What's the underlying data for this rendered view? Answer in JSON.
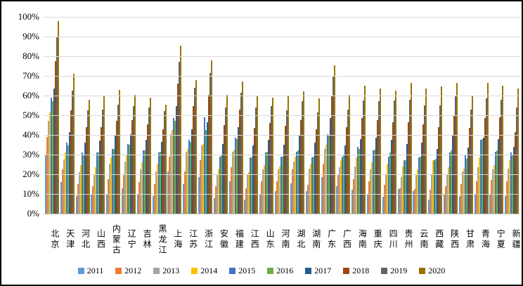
{
  "chart_data": {
    "type": "bar",
    "title": "",
    "xlabel": "",
    "ylabel": "",
    "ylim": [
      0,
      100
    ],
    "grid": true,
    "legend_position": "bottom",
    "y_ticks": [
      "0%",
      "10%",
      "20%",
      "30%",
      "40%",
      "50%",
      "60%",
      "70%",
      "80%",
      "90%",
      "100%"
    ],
    "categories": [
      "北京",
      "天津",
      "河北",
      "山西",
      "内蒙古",
      "辽宁",
      "吉林",
      "黑龙江",
      "上海",
      "江苏",
      "浙江",
      "安徽",
      "福建",
      "江西",
      "山东",
      "河南",
      "湖北",
      "湖南",
      "广东",
      "广西",
      "海南",
      "重庆",
      "四川",
      "贵州",
      "云南",
      "西藏",
      "陕西",
      "甘肃",
      "青海",
      "宁夏",
      "新疆"
    ],
    "series": [
      {
        "name": "2011",
        "color": "#5B9BD5",
        "values": [
          30,
          16,
          9,
          9.5,
          10,
          13,
          9.5,
          9,
          21.5,
          15,
          18.5,
          8,
          16.5,
          7,
          10,
          11.5,
          15.5,
          11.5,
          18.5,
          14,
          12,
          10,
          8.5,
          12.5,
          11.5,
          7,
          9.5,
          9,
          9.5,
          10,
          9
        ]
      },
      {
        "name": "2012",
        "color": "#ED7D31",
        "values": [
          39,
          22.5,
          15,
          14,
          17.5,
          19.5,
          16,
          15,
          29,
          21.5,
          27,
          14,
          23.5,
          13,
          16.5,
          16.5,
          22.5,
          14.5,
          25.5,
          20,
          17.5,
          16.5,
          14.5,
          13,
          12.5,
          12,
          14,
          15,
          16.5,
          17,
          16.5
        ]
      },
      {
        "name": "2013",
        "color": "#A5A5A5",
        "values": [
          47,
          27.5,
          21,
          20,
          25.5,
          26.5,
          22.5,
          21.5,
          40.5,
          31.5,
          34.5,
          20,
          31.5,
          19.5,
          22.5,
          22.5,
          26.5,
          23,
          33,
          23.5,
          24,
          22.5,
          20,
          18.5,
          20,
          19.5,
          20,
          21.5,
          23.5,
          22.5,
          23
        ]
      },
      {
        "name": "2014",
        "color": "#FFC000",
        "values": [
          51.5,
          31,
          24.5,
          23.5,
          28.5,
          30,
          26,
          25.5,
          42.5,
          33,
          35.5,
          22.5,
          32.5,
          21,
          24.5,
          24,
          29,
          25.5,
          35,
          27,
          28.5,
          26,
          25.5,
          24,
          22.5,
          27,
          23.5,
          23,
          28.5,
          24.5,
          27
        ]
      },
      {
        "name": "2015",
        "color": "#4472C4",
        "values": [
          59,
          36,
          31,
          31,
          33,
          35.5,
          32,
          31,
          48.5,
          37.5,
          49,
          29,
          38.5,
          28.5,
          31,
          29,
          31.5,
          28.5,
          40.5,
          29,
          34,
          32,
          29,
          27,
          28.5,
          27,
          31,
          30,
          37.5,
          31.5,
          31
        ]
      },
      {
        "name": "2016",
        "color": "#70AD47",
        "values": [
          57,
          34.5,
          30,
          31,
          33,
          35,
          32,
          31.5,
          47,
          36.5,
          42.5,
          30,
          38,
          28.5,
          31.5,
          29,
          32,
          29,
          40,
          30,
          33,
          32.5,
          31,
          27,
          29,
          28,
          32,
          28,
          38,
          32,
          30
        ]
      },
      {
        "name": "2017",
        "color": "#255E91",
        "values": [
          63.5,
          41.5,
          36,
          37,
          39.5,
          40.5,
          37.5,
          36.5,
          54.5,
          43,
          46.5,
          35.5,
          44,
          34.5,
          37.5,
          35,
          39.5,
          36,
          48.5,
          34.5,
          38,
          38.5,
          37.5,
          35.5,
          36,
          33,
          39.5,
          33.5,
          38.5,
          38,
          34
        ]
      },
      {
        "name": "2018",
        "color": "#9E480E",
        "values": [
          77.5,
          52.5,
          44,
          44,
          47,
          47.5,
          45.5,
          43,
          66,
          54.5,
          60.5,
          45,
          53,
          43.5,
          46,
          44.5,
          47.5,
          43,
          60,
          44,
          48.5,
          47.5,
          46.5,
          46.5,
          45.5,
          44,
          49.5,
          43.5,
          48.5,
          49,
          41.5
        ]
      },
      {
        "name": "2019",
        "color": "#636363",
        "values": [
          89.5,
          62.5,
          52.5,
          53,
          55.5,
          54.5,
          54,
          52,
          77,
          64,
          71.5,
          54,
          61.5,
          54,
          54.5,
          52.5,
          57,
          51.5,
          70,
          53,
          57.5,
          57,
          57.5,
          58,
          55,
          55,
          60,
          53,
          58.5,
          58,
          54
        ]
      },
      {
        "name": "2020",
        "color": "#997300",
        "values": [
          98,
          71,
          58,
          59.5,
          63,
          60.5,
          59,
          55.5,
          85.5,
          68,
          78,
          60.5,
          67,
          59.5,
          59,
          59.5,
          62,
          58.5,
          75.5,
          60.5,
          65,
          63.5,
          62.5,
          66.5,
          63.5,
          64.5,
          66.5,
          60,
          66.5,
          65,
          63.5
        ]
      }
    ]
  }
}
